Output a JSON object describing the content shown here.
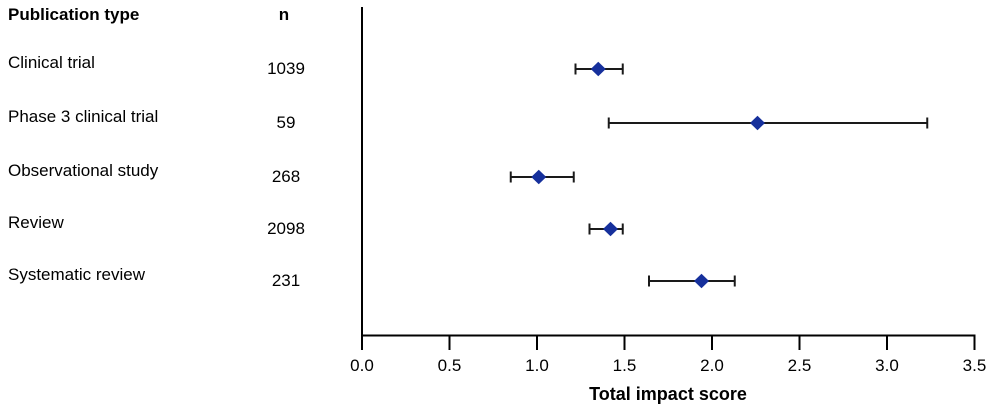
{
  "chart_data": {
    "type": "scatter",
    "subtype": "forest-plot",
    "title": "",
    "xlabel": "Total impact score",
    "ylabel": "",
    "xlim": [
      0.0,
      3.5
    ],
    "x_tick_values": [
      0.0,
      0.5,
      1.0,
      1.5,
      2.0,
      2.5,
      3.0,
      3.5
    ],
    "x_tick_labels": [
      "0.0",
      "0.5",
      "1.0",
      "1.5",
      "2.0",
      "2.5",
      "3.0",
      "3.5"
    ],
    "grid": false,
    "legend": "none",
    "columns": {
      "publication_type": "Publication type",
      "n": "n"
    },
    "rows": [
      {
        "label": "Clinical trial",
        "n": "1039",
        "point": 1.35,
        "ci_low": 1.22,
        "ci_high": 1.49
      },
      {
        "label": "Phase 3 clinical trial",
        "n": "59",
        "point": 2.26,
        "ci_low": 1.41,
        "ci_high": 3.23
      },
      {
        "label": "Observational study",
        "n": "268",
        "point": 1.01,
        "ci_low": 0.85,
        "ci_high": 1.21
      },
      {
        "label": "Review",
        "n": "2098",
        "point": 1.42,
        "ci_low": 1.3,
        "ci_high": 1.49
      },
      {
        "label": "Systematic review",
        "n": "231",
        "point": 1.94,
        "ci_low": 1.64,
        "ci_high": 2.13
      }
    ],
    "colors": {
      "marker": "#16309c",
      "error_bar": "#1a1a1a",
      "axis": "#000000",
      "text": "#000000"
    }
  }
}
